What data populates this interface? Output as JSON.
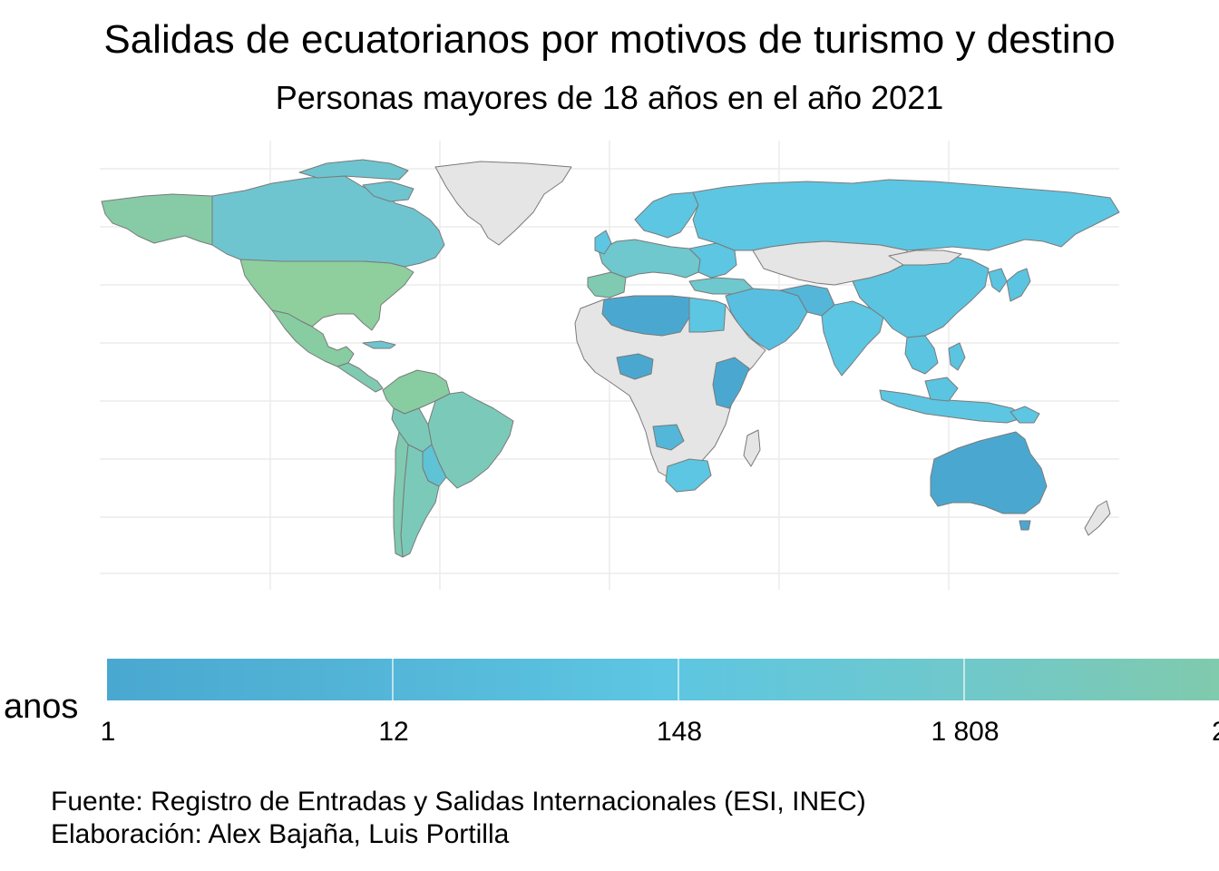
{
  "title": "Salidas de ecuatorianos por motivos de turismo y destino",
  "subtitle": "Personas mayores de 18 años en el año 2021",
  "legend": {
    "title_visible": "anos",
    "ticks": [
      "1",
      "12",
      "148",
      "1 808",
      "2"
    ],
    "colors": {
      "low": "#4aa8d0",
      "mid": "#5dc6e2",
      "high": "#80caad"
    },
    "no_data_color": "#e5e5e5"
  },
  "caption": {
    "source": "Fuente: Registro de Entradas y Salidas Internacionales (ESI, INEC)",
    "author": "Elaboración: Alex Bajaña, Luis Portilla"
  },
  "map": {
    "type": "choropleth",
    "projection": "equirectangular",
    "regions": [
      {
        "name": "North America",
        "level": "high"
      },
      {
        "name": "Alaska",
        "level": "high"
      },
      {
        "name": "Canada",
        "level": "mid-high"
      },
      {
        "name": "Greenland",
        "level": "none"
      },
      {
        "name": "Mexico / Central America",
        "level": "high"
      },
      {
        "name": "South America",
        "level": "mid-high"
      },
      {
        "name": "Europe",
        "level": "mid"
      },
      {
        "name": "Russia",
        "level": "mid"
      },
      {
        "name": "Asia",
        "level": "mid"
      },
      {
        "name": "Central Asia",
        "level": "none"
      },
      {
        "name": "Africa",
        "level": "none"
      },
      {
        "name": "Northern Africa",
        "level": "low"
      },
      {
        "name": "Australia",
        "level": "low"
      },
      {
        "name": "Indonesia",
        "level": "mid"
      }
    ]
  }
}
